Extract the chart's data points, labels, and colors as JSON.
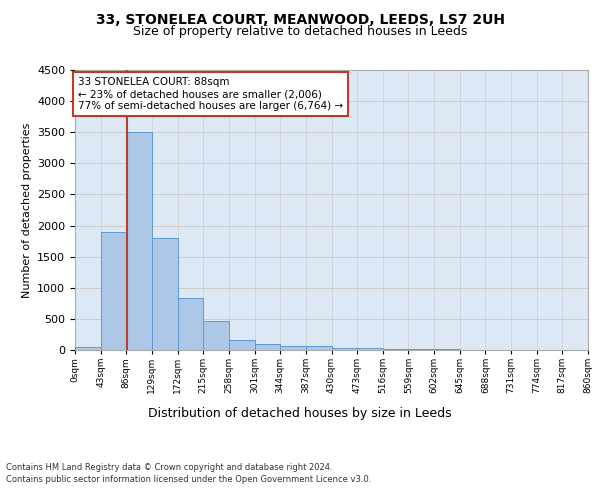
{
  "title1": "33, STONELEA COURT, MEANWOOD, LEEDS, LS7 2UH",
  "title2": "Size of property relative to detached houses in Leeds",
  "xlabel": "Distribution of detached houses by size in Leeds",
  "ylabel": "Number of detached properties",
  "bar_values": [
    50,
    1900,
    3500,
    1800,
    840,
    460,
    160,
    100,
    70,
    60,
    40,
    30,
    20,
    15,
    10,
    8,
    5,
    3,
    2,
    1
  ],
  "bin_edges": [
    0,
    43,
    86,
    129,
    172,
    215,
    258,
    301,
    344,
    387,
    430,
    473,
    516,
    559,
    602,
    645,
    688,
    731,
    774,
    817,
    860
  ],
  "bar_color": "#adc8e6",
  "bar_edge_color": "#5b9bd5",
  "property_size": 88,
  "annotation_line1": "33 STONELEA COURT: 88sqm",
  "annotation_line2": "← 23% of detached houses are smaller (2,006)",
  "annotation_line3": "77% of semi-detached houses are larger (6,764) →",
  "vline_color": "#c0392b",
  "annotation_box_color": "#c0392b",
  "ylim": [
    0,
    4500
  ],
  "yticks": [
    0,
    500,
    1000,
    1500,
    2000,
    2500,
    3000,
    3500,
    4000,
    4500
  ],
  "grid_color": "#cccccc",
  "bg_color": "#dce9f5",
  "footer1": "Contains HM Land Registry data © Crown copyright and database right 2024.",
  "footer2": "Contains public sector information licensed under the Open Government Licence v3.0."
}
